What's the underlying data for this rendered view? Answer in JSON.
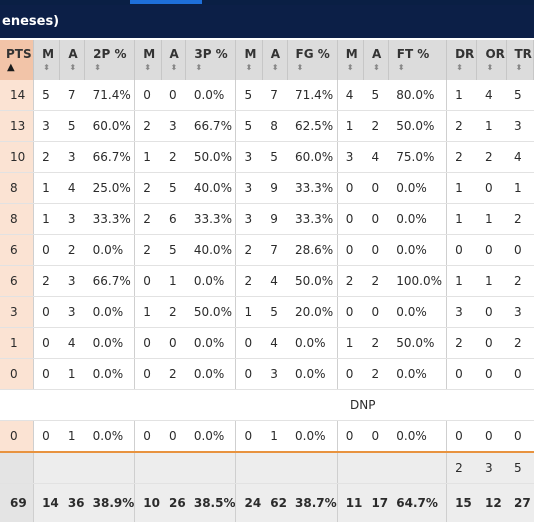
{
  "header": {
    "title": "eneses)"
  },
  "columns": [
    {
      "key": "pts",
      "label": "PTS"
    },
    {
      "key": "m2",
      "label": "M"
    },
    {
      "key": "a2",
      "label": "A"
    },
    {
      "key": "p2",
      "label": "2P %"
    },
    {
      "key": "m3",
      "label": "M"
    },
    {
      "key": "a3",
      "label": "A"
    },
    {
      "key": "p3",
      "label": "3P %"
    },
    {
      "key": "mfg",
      "label": "M"
    },
    {
      "key": "afg",
      "label": "A"
    },
    {
      "key": "pfg",
      "label": "FG %"
    },
    {
      "key": "mft",
      "label": "M"
    },
    {
      "key": "aft",
      "label": "A"
    },
    {
      "key": "pft",
      "label": "FT %"
    },
    {
      "key": "dr",
      "label": "DR"
    },
    {
      "key": "or",
      "label": "OR"
    },
    {
      "key": "tr",
      "label": "TR"
    }
  ],
  "rows": [
    [
      "14",
      "5",
      "7",
      "71.4%",
      "0",
      "0",
      "0.0%",
      "5",
      "7",
      "71.4%",
      "4",
      "5",
      "80.0%",
      "1",
      "4",
      "5"
    ],
    [
      "13",
      "3",
      "5",
      "60.0%",
      "2",
      "3",
      "66.7%",
      "5",
      "8",
      "62.5%",
      "1",
      "2",
      "50.0%",
      "2",
      "1",
      "3"
    ],
    [
      "10",
      "2",
      "3",
      "66.7%",
      "1",
      "2",
      "50.0%",
      "3",
      "5",
      "60.0%",
      "3",
      "4",
      "75.0%",
      "2",
      "2",
      "4"
    ],
    [
      "8",
      "1",
      "4",
      "25.0%",
      "2",
      "5",
      "40.0%",
      "3",
      "9",
      "33.3%",
      "0",
      "0",
      "0.0%",
      "1",
      "0",
      "1"
    ],
    [
      "8",
      "1",
      "3",
      "33.3%",
      "2",
      "6",
      "33.3%",
      "3",
      "9",
      "33.3%",
      "0",
      "0",
      "0.0%",
      "1",
      "1",
      "2"
    ],
    [
      "6",
      "0",
      "2",
      "0.0%",
      "2",
      "5",
      "40.0%",
      "2",
      "7",
      "28.6%",
      "0",
      "0",
      "0.0%",
      "0",
      "0",
      "0"
    ],
    [
      "6",
      "2",
      "3",
      "66.7%",
      "0",
      "1",
      "0.0%",
      "2",
      "4",
      "50.0%",
      "2",
      "2",
      "100.0%",
      "1",
      "1",
      "2"
    ],
    [
      "3",
      "0",
      "3",
      "0.0%",
      "1",
      "2",
      "50.0%",
      "1",
      "5",
      "20.0%",
      "0",
      "0",
      "0.0%",
      "3",
      "0",
      "3"
    ],
    [
      "1",
      "0",
      "4",
      "0.0%",
      "0",
      "0",
      "0.0%",
      "0",
      "4",
      "0.0%",
      "1",
      "2",
      "50.0%",
      "2",
      "0",
      "2"
    ],
    [
      "0",
      "0",
      "1",
      "0.0%",
      "0",
      "2",
      "0.0%",
      "0",
      "3",
      "0.0%",
      "0",
      "2",
      "0.0%",
      "0",
      "0",
      "0"
    ]
  ],
  "dnp_text": "DNP",
  "last_row": [
    "0",
    "0",
    "1",
    "0.0%",
    "0",
    "0",
    "0.0%",
    "0",
    "1",
    "0.0%",
    "0",
    "0",
    "0.0%",
    "0",
    "0",
    "0"
  ],
  "team_row": [
    "",
    "",
    "",
    "",
    "",
    "",
    "",
    "",
    "",
    "",
    "",
    "",
    "",
    "2",
    "3",
    "5"
  ],
  "total_row": [
    "69",
    "14",
    "36",
    "38.9%",
    "10",
    "26",
    "38.5%",
    "24",
    "62",
    "38.7%",
    "11",
    "17",
    "64.7%",
    "15",
    "12",
    "27"
  ],
  "sort_icons": {
    "pts": "sort-ascending-icon",
    "others": "sort-both-icon"
  },
  "colors": {
    "header_bg": "#0c1f47",
    "pts_header": "#f2c4a8",
    "pts_cell": "#fbe3d3",
    "divider": "#e8933f"
  }
}
